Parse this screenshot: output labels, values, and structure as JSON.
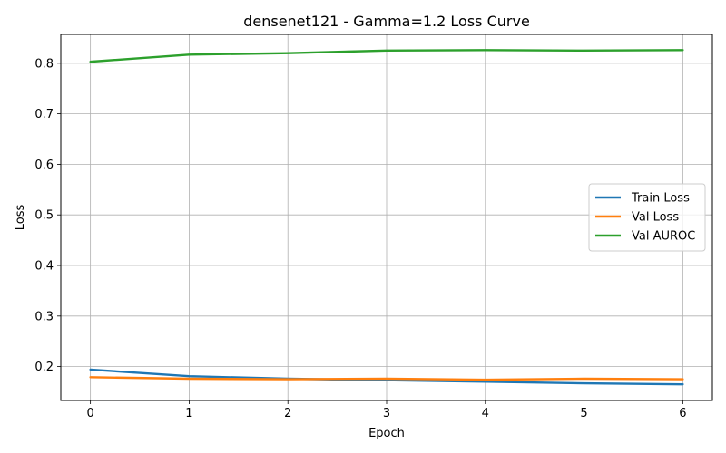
{
  "chart_data": {
    "type": "line",
    "title": "densenet121 - Gamma=1.2 Loss Curve",
    "xlabel": "Epoch",
    "ylabel": "Loss",
    "x": [
      0,
      1,
      2,
      3,
      4,
      5,
      6
    ],
    "xticks": [
      "0",
      "1",
      "2",
      "3",
      "4",
      "5",
      "6"
    ],
    "yticks": [
      "0.2",
      "0.3",
      "0.4",
      "0.5",
      "0.6",
      "0.7",
      "0.8"
    ],
    "xlim": [
      -0.3,
      6.3
    ],
    "ylim": [
      0.133,
      0.857
    ],
    "grid": true,
    "legend_position": "center-right",
    "series": [
      {
        "name": "Train Loss",
        "color": "#1f77b4",
        "values": [
          0.194,
          0.181,
          0.176,
          0.173,
          0.17,
          0.167,
          0.165
        ]
      },
      {
        "name": "Val Loss",
        "color": "#ff7f0e",
        "values": [
          0.179,
          0.176,
          0.175,
          0.176,
          0.174,
          0.176,
          0.175
        ]
      },
      {
        "name": "Val AUROC",
        "color": "#2ca02c",
        "values": [
          0.803,
          0.817,
          0.82,
          0.825,
          0.826,
          0.825,
          0.826
        ]
      }
    ]
  }
}
